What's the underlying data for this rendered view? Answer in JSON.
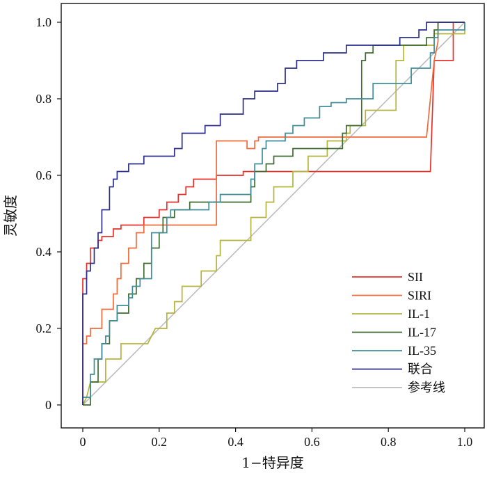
{
  "chart_data": {
    "type": "line",
    "xlabel": "1−特异度",
    "ylabel": "灵敏度",
    "xlim": [
      0,
      1
    ],
    "ylim": [
      0,
      1
    ],
    "xticks": [
      "0",
      "0.2",
      "0.4",
      "0.6",
      "0.8",
      "1.0"
    ],
    "yticks": [
      "0",
      "0.2",
      "0.4",
      "0.6",
      "0.8",
      "1.0"
    ],
    "grid": false,
    "legend_position": "bottom-right",
    "series": [
      {
        "name": "SII",
        "color": "#e8302a",
        "points": [
          [
            0,
            0
          ],
          [
            0,
            0.33
          ],
          [
            0.01,
            0.33
          ],
          [
            0.01,
            0.37
          ],
          [
            0.02,
            0.37
          ],
          [
            0.02,
            0.41
          ],
          [
            0.04,
            0.41
          ],
          [
            0.04,
            0.43
          ],
          [
            0.05,
            0.43
          ],
          [
            0.05,
            0.44
          ],
          [
            0.08,
            0.44
          ],
          [
            0.08,
            0.46
          ],
          [
            0.1,
            0.46
          ],
          [
            0.1,
            0.47
          ],
          [
            0.16,
            0.47
          ],
          [
            0.16,
            0.49
          ],
          [
            0.2,
            0.49
          ],
          [
            0.2,
            0.51
          ],
          [
            0.22,
            0.51
          ],
          [
            0.22,
            0.53
          ],
          [
            0.25,
            0.53
          ],
          [
            0.25,
            0.55
          ],
          [
            0.27,
            0.55
          ],
          [
            0.27,
            0.57
          ],
          [
            0.29,
            0.57
          ],
          [
            0.29,
            0.59
          ],
          [
            0.35,
            0.59
          ],
          [
            0.35,
            0.6
          ],
          [
            0.42,
            0.6
          ],
          [
            0.42,
            0.61
          ],
          [
            0.91,
            0.61
          ],
          [
            0.92,
            0.9
          ],
          [
            0.97,
            0.9
          ],
          [
            0.97,
            1.0
          ],
          [
            1.0,
            1.0
          ]
        ]
      },
      {
        "name": "SIRI",
        "color": "#f36a3a",
        "points": [
          [
            0,
            0
          ],
          [
            0,
            0.16
          ],
          [
            0.01,
            0.16
          ],
          [
            0.01,
            0.18
          ],
          [
            0.02,
            0.18
          ],
          [
            0.02,
            0.2
          ],
          [
            0.05,
            0.2
          ],
          [
            0.05,
            0.25
          ],
          [
            0.06,
            0.25
          ],
          [
            0.08,
            0.25
          ],
          [
            0.08,
            0.29
          ],
          [
            0.09,
            0.29
          ],
          [
            0.09,
            0.33
          ],
          [
            0.1,
            0.33
          ],
          [
            0.1,
            0.37
          ],
          [
            0.12,
            0.37
          ],
          [
            0.12,
            0.41
          ],
          [
            0.14,
            0.41
          ],
          [
            0.14,
            0.45
          ],
          [
            0.16,
            0.45
          ],
          [
            0.16,
            0.47
          ],
          [
            0.23,
            0.47
          ],
          [
            0.23,
            0.47
          ],
          [
            0.35,
            0.47
          ],
          [
            0.35,
            0.69
          ],
          [
            0.43,
            0.69
          ],
          [
            0.43,
            0.67
          ],
          [
            0.45,
            0.67
          ],
          [
            0.45,
            0.69
          ],
          [
            0.46,
            0.69
          ],
          [
            0.46,
            0.7
          ],
          [
            0.9,
            0.7
          ],
          [
            0.91,
            0.8
          ],
          [
            0.92,
            0.9
          ],
          [
            0.93,
            0.95
          ],
          [
            0.93,
            1.0
          ],
          [
            1.0,
            1.0
          ]
        ]
      },
      {
        "name": "IL-1",
        "color": "#b5b43a",
        "points": [
          [
            0,
            0
          ],
          [
            0.01,
            0.02
          ],
          [
            0.02,
            0.06
          ],
          [
            0.06,
            0.06
          ],
          [
            0.06,
            0.12
          ],
          [
            0.1,
            0.12
          ],
          [
            0.1,
            0.16
          ],
          [
            0.17,
            0.16
          ],
          [
            0.19,
            0.2
          ],
          [
            0.22,
            0.2
          ],
          [
            0.22,
            0.24
          ],
          [
            0.24,
            0.24
          ],
          [
            0.24,
            0.27
          ],
          [
            0.26,
            0.27
          ],
          [
            0.26,
            0.31
          ],
          [
            0.31,
            0.31
          ],
          [
            0.31,
            0.35
          ],
          [
            0.35,
            0.35
          ],
          [
            0.35,
            0.39
          ],
          [
            0.36,
            0.39
          ],
          [
            0.36,
            0.43
          ],
          [
            0.44,
            0.43
          ],
          [
            0.44,
            0.49
          ],
          [
            0.48,
            0.49
          ],
          [
            0.48,
            0.53
          ],
          [
            0.5,
            0.53
          ],
          [
            0.5,
            0.57
          ],
          [
            0.55,
            0.57
          ],
          [
            0.55,
            0.61
          ],
          [
            0.59,
            0.61
          ],
          [
            0.59,
            0.65
          ],
          [
            0.64,
            0.65
          ],
          [
            0.64,
            0.69
          ],
          [
            0.69,
            0.69
          ],
          [
            0.69,
            0.71
          ],
          [
            0.7,
            0.71
          ],
          [
            0.7,
            0.73
          ],
          [
            0.74,
            0.73
          ],
          [
            0.74,
            0.77
          ],
          [
            0.82,
            0.77
          ],
          [
            0.82,
            0.9
          ],
          [
            0.84,
            0.9
          ],
          [
            0.84,
            0.94
          ],
          [
            0.92,
            0.94
          ],
          [
            0.92,
            0.97
          ],
          [
            1.0,
            0.97
          ],
          [
            1.0,
            1.0
          ]
        ]
      },
      {
        "name": "IL-17",
        "color": "#3e6b30",
        "points": [
          [
            0,
            0
          ],
          [
            0.02,
            0
          ],
          [
            0.02,
            0.06
          ],
          [
            0.04,
            0.06
          ],
          [
            0.04,
            0.12
          ],
          [
            0.05,
            0.12
          ],
          [
            0.05,
            0.16
          ],
          [
            0.07,
            0.16
          ],
          [
            0.07,
            0.22
          ],
          [
            0.09,
            0.22
          ],
          [
            0.09,
            0.24
          ],
          [
            0.12,
            0.24
          ],
          [
            0.12,
            0.29
          ],
          [
            0.14,
            0.29
          ],
          [
            0.14,
            0.33
          ],
          [
            0.16,
            0.33
          ],
          [
            0.16,
            0.37
          ],
          [
            0.18,
            0.37
          ],
          [
            0.18,
            0.41
          ],
          [
            0.2,
            0.41
          ],
          [
            0.2,
            0.45
          ],
          [
            0.21,
            0.45
          ],
          [
            0.21,
            0.49
          ],
          [
            0.24,
            0.49
          ],
          [
            0.24,
            0.51
          ],
          [
            0.28,
            0.51
          ],
          [
            0.28,
            0.53
          ],
          [
            0.44,
            0.53
          ],
          [
            0.44,
            0.57
          ],
          [
            0.45,
            0.57
          ],
          [
            0.45,
            0.61
          ],
          [
            0.48,
            0.61
          ],
          [
            0.48,
            0.63
          ],
          [
            0.5,
            0.63
          ],
          [
            0.5,
            0.65
          ],
          [
            0.55,
            0.65
          ],
          [
            0.55,
            0.67
          ],
          [
            0.68,
            0.67
          ],
          [
            0.68,
            0.71
          ],
          [
            0.69,
            0.71
          ],
          [
            0.69,
            0.73
          ],
          [
            0.73,
            0.73
          ],
          [
            0.73,
            0.9
          ],
          [
            0.74,
            0.9
          ],
          [
            0.74,
            0.92
          ],
          [
            0.76,
            0.92
          ],
          [
            0.76,
            0.94
          ],
          [
            0.9,
            0.94
          ],
          [
            0.9,
            0.96
          ],
          [
            0.92,
            0.96
          ],
          [
            0.92,
            0.98
          ],
          [
            0.93,
            0.98
          ],
          [
            0.93,
            1.0
          ],
          [
            1.0,
            1.0
          ]
        ]
      },
      {
        "name": "IL-35",
        "color": "#3f8d99",
        "points": [
          [
            0,
            0
          ],
          [
            0,
            0.02
          ],
          [
            0.02,
            0.02
          ],
          [
            0.02,
            0.08
          ],
          [
            0.03,
            0.08
          ],
          [
            0.03,
            0.12
          ],
          [
            0.05,
            0.12
          ],
          [
            0.05,
            0.16
          ],
          [
            0.06,
            0.16
          ],
          [
            0.06,
            0.18
          ],
          [
            0.07,
            0.18
          ],
          [
            0.07,
            0.22
          ],
          [
            0.09,
            0.22
          ],
          [
            0.09,
            0.26
          ],
          [
            0.12,
            0.26
          ],
          [
            0.12,
            0.28
          ],
          [
            0.13,
            0.28
          ],
          [
            0.13,
            0.31
          ],
          [
            0.15,
            0.31
          ],
          [
            0.15,
            0.33
          ],
          [
            0.18,
            0.33
          ],
          [
            0.18,
            0.45
          ],
          [
            0.22,
            0.45
          ],
          [
            0.22,
            0.49
          ],
          [
            0.23,
            0.49
          ],
          [
            0.23,
            0.51
          ],
          [
            0.33,
            0.51
          ],
          [
            0.33,
            0.53
          ],
          [
            0.36,
            0.53
          ],
          [
            0.36,
            0.55
          ],
          [
            0.44,
            0.55
          ],
          [
            0.44,
            0.59
          ],
          [
            0.45,
            0.59
          ],
          [
            0.45,
            0.63
          ],
          [
            0.47,
            0.63
          ],
          [
            0.47,
            0.67
          ],
          [
            0.48,
            0.67
          ],
          [
            0.48,
            0.69
          ],
          [
            0.53,
            0.69
          ],
          [
            0.53,
            0.71
          ],
          [
            0.55,
            0.71
          ],
          [
            0.55,
            0.73
          ],
          [
            0.58,
            0.73
          ],
          [
            0.58,
            0.75
          ],
          [
            0.62,
            0.75
          ],
          [
            0.62,
            0.78
          ],
          [
            0.65,
            0.78
          ],
          [
            0.65,
            0.79
          ],
          [
            0.69,
            0.79
          ],
          [
            0.69,
            0.8
          ],
          [
            0.76,
            0.8
          ],
          [
            0.76,
            0.84
          ],
          [
            0.86,
            0.84
          ],
          [
            0.86,
            0.88
          ],
          [
            0.91,
            0.88
          ],
          [
            0.91,
            0.92
          ],
          [
            0.92,
            0.92
          ],
          [
            0.92,
            0.96
          ],
          [
            0.93,
            0.96
          ],
          [
            0.93,
            0.98
          ],
          [
            1.0,
            0.98
          ],
          [
            1.0,
            1.0
          ]
        ]
      },
      {
        "name": "联合",
        "color": "#2b2e8c",
        "points": [
          [
            0,
            0
          ],
          [
            0,
            0.2
          ],
          [
            0,
            0.29
          ],
          [
            0.01,
            0.29
          ],
          [
            0.01,
            0.35
          ],
          [
            0.02,
            0.35
          ],
          [
            0.02,
            0.37
          ],
          [
            0.03,
            0.37
          ],
          [
            0.03,
            0.41
          ],
          [
            0.04,
            0.41
          ],
          [
            0.04,
            0.45
          ],
          [
            0.05,
            0.45
          ],
          [
            0.05,
            0.51
          ],
          [
            0.07,
            0.51
          ],
          [
            0.07,
            0.57
          ],
          [
            0.08,
            0.57
          ],
          [
            0.08,
            0.59
          ],
          [
            0.09,
            0.59
          ],
          [
            0.09,
            0.61
          ],
          [
            0.12,
            0.61
          ],
          [
            0.12,
            0.63
          ],
          [
            0.16,
            0.63
          ],
          [
            0.16,
            0.65
          ],
          [
            0.24,
            0.65
          ],
          [
            0.24,
            0.67
          ],
          [
            0.26,
            0.67
          ],
          [
            0.26,
            0.71
          ],
          [
            0.32,
            0.71
          ],
          [
            0.32,
            0.73
          ],
          [
            0.36,
            0.73
          ],
          [
            0.36,
            0.76
          ],
          [
            0.42,
            0.76
          ],
          [
            0.42,
            0.8
          ],
          [
            0.45,
            0.8
          ],
          [
            0.45,
            0.82
          ],
          [
            0.51,
            0.82
          ],
          [
            0.51,
            0.84
          ],
          [
            0.53,
            0.84
          ],
          [
            0.53,
            0.88
          ],
          [
            0.56,
            0.88
          ],
          [
            0.56,
            0.9
          ],
          [
            0.63,
            0.9
          ],
          [
            0.63,
            0.92
          ],
          [
            0.69,
            0.92
          ],
          [
            0.69,
            0.94
          ],
          [
            0.83,
            0.94
          ],
          [
            0.83,
            0.96
          ],
          [
            0.88,
            0.96
          ],
          [
            0.88,
            0.98
          ],
          [
            0.9,
            0.98
          ],
          [
            0.9,
            1.0
          ],
          [
            1.0,
            1.0
          ]
        ]
      },
      {
        "name": "参考线",
        "color": "#bdbdbd",
        "points": [
          [
            0,
            0
          ],
          [
            1,
            1
          ]
        ]
      }
    ]
  }
}
